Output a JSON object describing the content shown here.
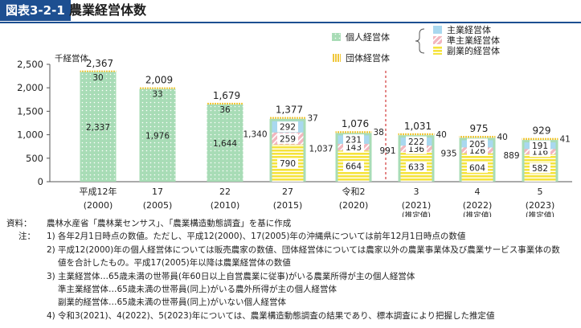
{
  "header": {
    "figure_label": "図表3-2-1",
    "title": "農業経営体数"
  },
  "colors": {
    "individual": "#a8dcb6",
    "group": "#f0c73a",
    "main": "#a9d8ef",
    "semi": "#f2b5be",
    "side": "#f5e33c",
    "divider": "#d33a3a"
  },
  "chart_data": {
    "type": "bar",
    "stacked": true,
    "ylabel": "千経営体",
    "ylim": [
      0,
      2500
    ],
    "yticks": [
      0,
      500,
      1000,
      1500,
      2000,
      2500
    ],
    "yticks_text": [
      "0",
      "500",
      "1,000",
      "1,500",
      "2,000",
      "2,500"
    ],
    "categories": [
      "平成12年(2000)",
      "17(2005)",
      "22(2010)",
      "27(2015)",
      "令和2(2020)",
      "3(2021)推定値",
      "4(2022)推定値",
      "5(2023)推定値"
    ],
    "x_labels_top": [
      "平成12年",
      "17",
      "22",
      "27",
      "令和2",
      "3",
      "4",
      "5"
    ],
    "x_labels_year": [
      "(2000)",
      "(2005)",
      "(2010)",
      "(2015)",
      "(2020)",
      "(2021)",
      "(2022)",
      "(2023)"
    ],
    "x_labels_note": [
      "",
      "",
      "",
      "",
      "",
      "(推定値)",
      "(推定値)",
      "(推定値)"
    ],
    "totals": [
      2367,
      2009,
      1679,
      1377,
      1076,
      1031,
      975,
      929
    ],
    "totals_text": [
      "2,367",
      "2,009",
      "1,679",
      "1,377",
      "1,076",
      "1,031",
      "975",
      "929"
    ],
    "individual_totals": [
      2337,
      1976,
      1644,
      1340,
      1037,
      991,
      935,
      889
    ],
    "individual_totals_text": [
      "2,337",
      "1,976",
      "1,644",
      "1,340",
      "1,037",
      "991",
      "935",
      "889"
    ],
    "group": [
      30,
      33,
      36,
      37,
      38,
      40,
      40,
      41
    ],
    "series": [
      {
        "name": "個人経営体",
        "values": [
          2337,
          1976,
          1644,
          null,
          null,
          null,
          null,
          null
        ]
      },
      {
        "name": "副業的経営体",
        "values": [
          null,
          null,
          null,
          790,
          664,
          633,
          604,
          582
        ]
      },
      {
        "name": "準主業経営体",
        "values": [
          null,
          null,
          null,
          259,
          143,
          136,
          126,
          116
        ]
      },
      {
        "name": "主業経営体",
        "values": [
          null,
          null,
          null,
          292,
          231,
          222,
          205,
          191
        ]
      },
      {
        "name": "団体経営体",
        "values": [
          30,
          33,
          36,
          37,
          38,
          40,
          40,
          41
        ]
      }
    ],
    "legend": {
      "individual": "個人経営体",
      "group": "団体経営体",
      "main": "主業経営体",
      "semi": "準主業経営体",
      "side": "副業的経営体"
    },
    "legend_placement": "top-right",
    "grid": false
  },
  "notes": {
    "source_label": "資料：",
    "source_text": "農林水産省「農林業センサス」、「農業構造動態調査」を基に作成",
    "note_head": "注：",
    "items": [
      {
        "num": "1)",
        "lines": [
          "各年2月1日時点の数値。ただし、平成12(2000)、17(2005)年の沖縄県については前年12月1日時点の数値"
        ]
      },
      {
        "num": "2)",
        "lines": [
          "平成12(2000)年の個人経営体については販売農家の数値、団体経営体については農家以外の農業事業体及び農業サービス事業体の数",
          "値を合計したもの。平成17(2005)年以降は農業経営体の数値"
        ]
      },
      {
        "num": "3)",
        "lines": [
          "主業経営体…65歳未満の世帯員(年60日以上自営農業に従事)がいる農業所得が主の個人経営体",
          "準主業経営体…65歳未満の世帯員(同上)がいる農外所得が主の個人経営体",
          "副業的経営体…65歳未満の世帯員(同上)がいない個人経営体"
        ]
      },
      {
        "num": "4)",
        "lines": [
          "令和3(2021)、4(2022)、5(2023)年については、農業構造動態調査の結果であり、標本調査により把握した推定値"
        ]
      }
    ]
  }
}
